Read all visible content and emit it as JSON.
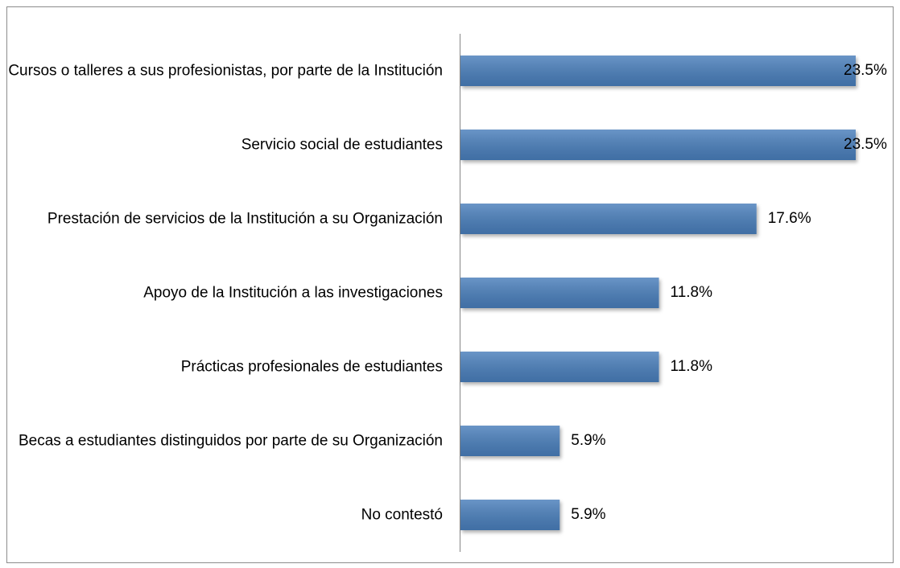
{
  "chart_data": {
    "type": "bar",
    "orientation": "horizontal",
    "categories": [
      "Cursos o talleres a sus profesionistas, por parte de la Institución",
      "Servicio social de estudiantes",
      "Prestación de servicios de la Institución a su Organización",
      "Apoyo de la Institución a las investigaciones",
      "Prácticas profesionales de estudiantes",
      "Becas a estudiantes distinguidos por parte de su Organización",
      "No contestó"
    ],
    "values": [
      23.5,
      23.5,
      17.6,
      11.8,
      11.8,
      5.9,
      5.9
    ],
    "value_labels": [
      "23.5%",
      "23.5%",
      "17.6%",
      "11.8%",
      "11.8%",
      "5.9%",
      "5.9%"
    ],
    "color": "#4a7ebb"
  }
}
